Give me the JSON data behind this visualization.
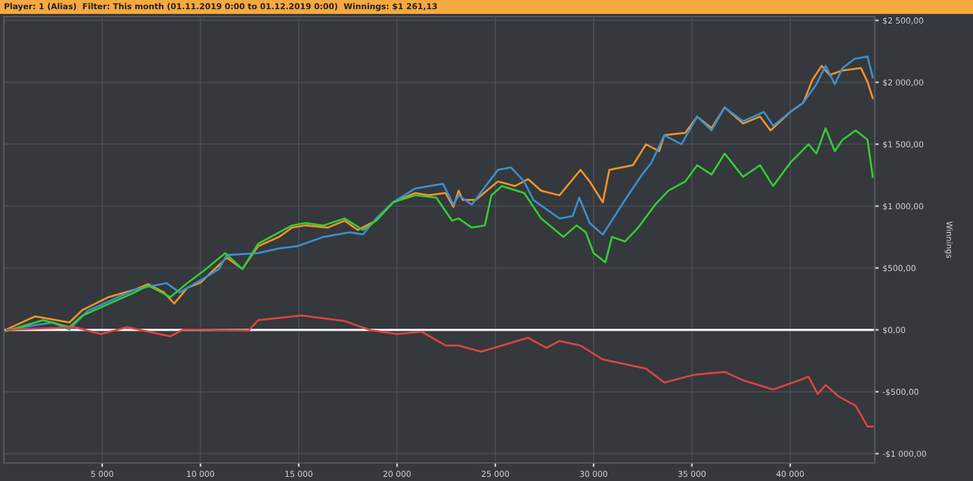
{
  "chart_data": {
    "type": "line",
    "title": "Player: 1 (Alias)  Filter: This month (01.11.2019 0:00 to 01.12.2019 0:00)  Winnings: $1 261,13",
    "ylabel": "Winnings",
    "xlim": [
      0,
      44300
    ],
    "xticks": [
      {
        "value": 5000,
        "label": "5 000"
      },
      {
        "value": 10000,
        "label": "10 000"
      },
      {
        "value": 15000,
        "label": "15 000"
      },
      {
        "value": 20000,
        "label": "20 000"
      },
      {
        "value": 25000,
        "label": "25 000"
      },
      {
        "value": 30000,
        "label": "30 000"
      },
      {
        "value": 35000,
        "label": "35 000"
      },
      {
        "value": 40000,
        "label": "40 000"
      }
    ],
    "ylim": [
      -1075,
      2530
    ],
    "yticks": [
      {
        "value": -1000,
        "label": "-$1 000,00"
      },
      {
        "value": -500,
        "label": "-$500,00"
      },
      {
        "value": 0,
        "label": "$0,00"
      },
      {
        "value": 500,
        "label": "$500,00"
      },
      {
        "value": 1000,
        "label": "$1 000,00"
      },
      {
        "value": 1500,
        "label": "$1 500,00"
      },
      {
        "value": 2000,
        "label": "$2 000,00"
      },
      {
        "value": 2500,
        "label": "$2 500,00"
      }
    ],
    "grid": true,
    "legend": false,
    "ref_lines": [
      {
        "axis": "y",
        "value": 0,
        "label": null,
        "color": "#f2f2f2"
      }
    ],
    "series": [
      {
        "color": "#f0922b",
        "x": [
          133,
          1580,
          3333,
          4000,
          5333,
          6667,
          7333,
          8133,
          8667,
          9333,
          10000,
          10467,
          11333,
          12133,
          12933,
          14000,
          14667,
          15333,
          16467,
          17333,
          18000,
          18933,
          19800,
          20933,
          21600,
          22467,
          22867,
          23133,
          23333,
          24000,
          25133,
          26000,
          26667,
          27333,
          28267,
          29333,
          29800,
          30467,
          30800,
          32000,
          32667,
          33333,
          33600,
          34667,
          35267,
          36000,
          36667,
          37600,
          38467,
          39000,
          40000,
          40667,
          41133,
          41600,
          42000,
          42667,
          43600,
          43933,
          44200
        ],
        "values": [
          3,
          109,
          60,
          160,
          265,
          325,
          370,
          303,
          213,
          340,
          381,
          452,
          583,
          493,
          676,
          751,
          826,
          844,
          826,
          882,
          807,
          882,
          1031,
          1106,
          1087,
          1106,
          994,
          1124,
          1050,
          1050,
          1199,
          1162,
          1218,
          1124,
          1087,
          1293,
          1199,
          1031,
          1293,
          1330,
          1499,
          1443,
          1573,
          1592,
          1723,
          1629,
          1797,
          1667,
          1723,
          1611,
          1760,
          1835,
          2021,
          2133,
          2059,
          2096,
          2115,
          2003,
          1872
        ]
      },
      {
        "color": "#3a8fd0",
        "x": [
          133,
          2467,
          3333,
          4267,
          6667,
          8267,
          8933,
          10000,
          10933,
          11333,
          12933,
          14000,
          14933,
          16267,
          17600,
          18267,
          18933,
          19800,
          20933,
          22333,
          22867,
          23133,
          23800,
          25133,
          25800,
          26467,
          26933,
          28267,
          28933,
          29267,
          29800,
          30467,
          31600,
          32467,
          32933,
          33600,
          34467,
          35267,
          36000,
          36667,
          37600,
          38667,
          39133,
          40000,
          40667,
          41333,
          41800,
          42267,
          42667,
          43267,
          43933,
          44200
        ],
        "values": [
          0,
          60,
          3,
          154,
          325,
          378,
          303,
          400,
          490,
          604,
          620,
          658,
          676,
          751,
          788,
          770,
          900,
          1031,
          1143,
          1180,
          1012,
          1087,
          1012,
          1293,
          1312,
          1199,
          1050,
          900,
          919,
          1068,
          863,
          770,
          1050,
          1255,
          1349,
          1573,
          1499,
          1723,
          1611,
          1797,
          1685,
          1760,
          1648,
          1760,
          1835,
          1984,
          2133,
          1984,
          2115,
          2189,
          2208,
          2040
        ]
      },
      {
        "color": "#33cc33",
        "x": [
          133,
          2000,
          3333,
          4000,
          6667,
          7333,
          8467,
          9333,
          10267,
          11267,
          12133,
          12933,
          14000,
          14667,
          15333,
          16267,
          17333,
          18267,
          18933,
          19800,
          20933,
          22000,
          22800,
          23133,
          23800,
          24467,
          24800,
          25333,
          26467,
          27333,
          28467,
          29133,
          29600,
          30000,
          30600,
          30933,
          31600,
          32267,
          33133,
          33800,
          34667,
          35267,
          36000,
          36667,
          37600,
          38467,
          39133,
          40000,
          40933,
          41333,
          41800,
          42267,
          42667,
          43333,
          43933,
          44200
        ],
        "values": [
          -9,
          78,
          22,
          116,
          303,
          359,
          265,
          378,
          490,
          620,
          490,
          695,
          788,
          844,
          863,
          844,
          900,
          807,
          882,
          1031,
          1087,
          1068,
          882,
          900,
          826,
          844,
          1087,
          1162,
          1106,
          900,
          751,
          844,
          788,
          620,
          546,
          751,
          714,
          826,
          1012,
          1124,
          1199,
          1330,
          1255,
          1424,
          1236,
          1330,
          1162,
          1349,
          1499,
          1424,
          1629,
          1443,
          1536,
          1611,
          1536,
          1236
        ]
      },
      {
        "color": "#d94545",
        "x": [
          133,
          3600,
          4933,
          6267,
          8467,
          9133,
          12467,
          12933,
          15133,
          17333,
          18667,
          20000,
          21267,
          22467,
          23133,
          24267,
          25333,
          26667,
          27600,
          28267,
          29333,
          30467,
          31600,
          32667,
          33600,
          35133,
          36667,
          37600,
          39133,
          40467,
          40933,
          41400,
          41800,
          42467,
          43333,
          43933,
          44200
        ],
        "values": [
          0,
          22,
          -34,
          22,
          -52,
          3,
          -3,
          78,
          116,
          71,
          -3,
          -34,
          -15,
          -127,
          -127,
          -176,
          -127,
          -64,
          -146,
          -90,
          -127,
          -239,
          -277,
          -314,
          -426,
          -362,
          -340,
          -407,
          -482,
          -407,
          -378,
          -519,
          -445,
          -538,
          -613,
          -781,
          -781
        ]
      }
    ]
  }
}
